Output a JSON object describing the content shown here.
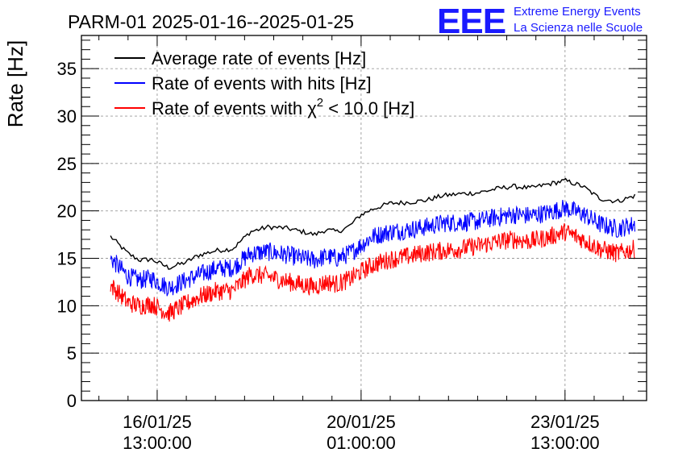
{
  "header": {
    "title": "PARM-01 2025-01-16--2025-01-25",
    "logo_text": "EEE",
    "logo_line1": "Extreme Energy Events",
    "logo_line2": "La Scienza nelle Scuole"
  },
  "colors": {
    "average": "#000000",
    "hits": "#0000ff",
    "chi2": "#ff0000",
    "logo": "#1a1aff"
  },
  "chart_data": {
    "type": "line",
    "ylabel": "Rate [Hz]",
    "ylim": [
      0,
      38.5
    ],
    "xlim": [
      0,
      9.7
    ],
    "yticks": [
      {
        "v": 0,
        "label": "0"
      },
      {
        "v": 5,
        "label": "5"
      },
      {
        "v": 10,
        "label": "10"
      },
      {
        "v": 15,
        "label": "15"
      },
      {
        "v": 20,
        "label": "20"
      },
      {
        "v": 25,
        "label": "25"
      },
      {
        "v": 30,
        "label": "30"
      },
      {
        "v": 35,
        "label": "35"
      }
    ],
    "xticks": [
      {
        "v": 1.3,
        "date": "16/01/25",
        "time": "13:00:00"
      },
      {
        "v": 4.8,
        "date": "20/01/25",
        "time": "01:00:00"
      },
      {
        "v": 8.3,
        "date": "23/01/25",
        "time": "13:00:00"
      }
    ],
    "grid": true,
    "legend_position": "top-left",
    "legend": [
      {
        "key": "average",
        "text": "Average rate of events [Hz]"
      },
      {
        "key": "hits",
        "text": "Rate of events with hits [Hz]"
      },
      {
        "key": "chi2",
        "prefix": "Rate of events with χ",
        "sup": "2",
        "suffix": " < 10.0 [Hz]"
      }
    ],
    "x": [
      0.5,
      0.8,
      1.0,
      1.2,
      1.5,
      1.8,
      2.0,
      2.3,
      2.6,
      2.9,
      3.2,
      3.5,
      3.8,
      4.0,
      4.2,
      4.4,
      4.6,
      4.8,
      5.0,
      5.3,
      5.6,
      5.9,
      6.2,
      6.5,
      6.8,
      7.1,
      7.4,
      7.7,
      8.0,
      8.3,
      8.6,
      8.9,
      9.2,
      9.5
    ],
    "series": [
      {
        "key": "average",
        "jitter": 0.25,
        "values": [
          17.3,
          15.5,
          14.8,
          14.9,
          14.0,
          14.6,
          15.3,
          15.8,
          16.0,
          17.8,
          18.3,
          18.2,
          17.8,
          17.5,
          18.0,
          17.8,
          18.4,
          19.6,
          20.2,
          20.8,
          20.9,
          21.1,
          21.6,
          21.8,
          21.9,
          22.3,
          22.6,
          22.4,
          22.8,
          23.2,
          22.6,
          21.3,
          21.0,
          21.6
        ]
      },
      {
        "key": "hits",
        "jitter": 1.0,
        "values": [
          15.0,
          13.1,
          12.7,
          12.9,
          11.9,
          12.7,
          13.2,
          13.9,
          14.0,
          15.5,
          15.7,
          15.4,
          15.0,
          14.8,
          15.2,
          15.0,
          15.5,
          16.4,
          17.3,
          17.8,
          18.0,
          18.3,
          18.7,
          18.8,
          18.9,
          19.3,
          19.6,
          19.5,
          19.8,
          20.3,
          19.7,
          18.6,
          18.1,
          18.6
        ]
      },
      {
        "key": "chi2",
        "jitter": 1.0,
        "values": [
          12.2,
          10.3,
          10.0,
          10.2,
          9.2,
          10.2,
          10.9,
          11.5,
          11.6,
          13.3,
          13.1,
          12.6,
          12.2,
          12.0,
          12.5,
          12.3,
          12.8,
          13.6,
          14.3,
          14.9,
          15.2,
          15.6,
          15.8,
          16.0,
          16.3,
          16.7,
          17.0,
          16.8,
          17.2,
          17.8,
          17.0,
          16.0,
          15.5,
          16.0
        ]
      }
    ]
  }
}
